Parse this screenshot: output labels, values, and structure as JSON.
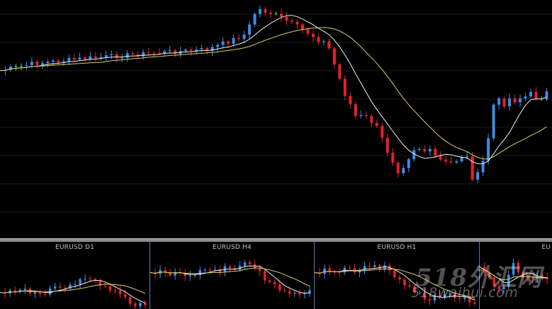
{
  "main_chart": {
    "colors": {
      "bull": "#3c8ce6",
      "bear": "#e8202a",
      "doji": "#5cc85c",
      "ma_fast": "#f0f0f0",
      "ma_slow": "#d8d060",
      "grid": "#1c1c1c"
    }
  },
  "mini_charts": [
    {
      "title": "EURUSD D1"
    },
    {
      "title": "EURUSD H4"
    },
    {
      "title": "EURUSD H1"
    },
    {
      "title": "EU"
    }
  ],
  "watermark": {
    "primary": "518外汇网",
    "secondary": "518waihui.com"
  }
}
